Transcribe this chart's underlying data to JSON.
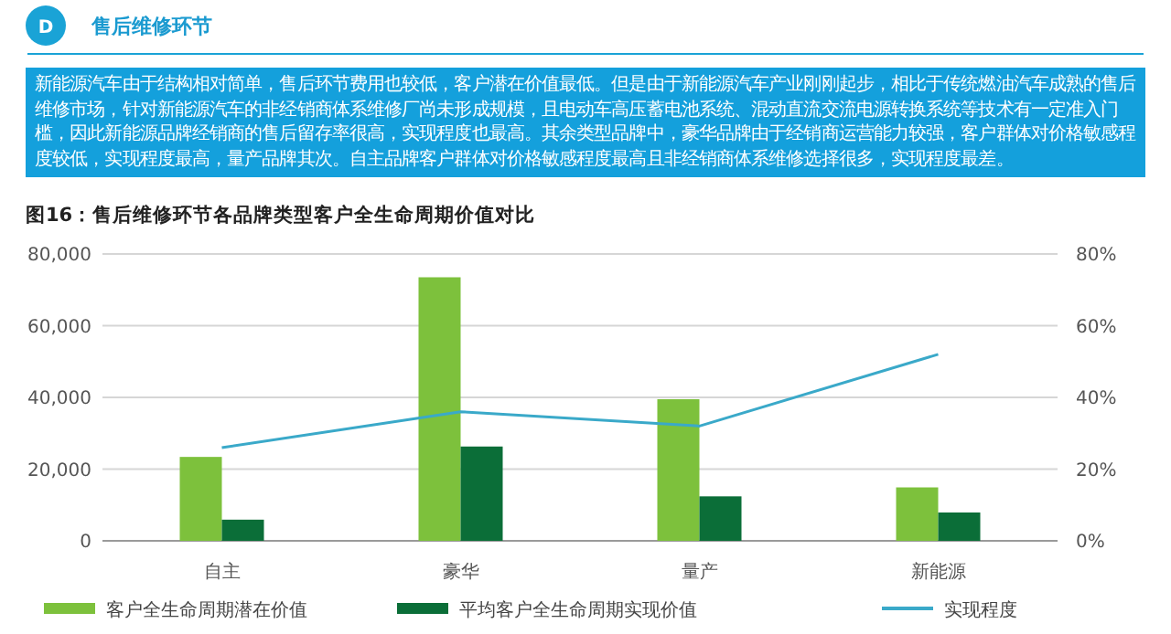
{
  "chart_data": {
    "type": "bar",
    "title": "图16：售后维修环节各品牌类型客户全生命周期价值对比",
    "annotations": [
      "D",
      "售后维修环节",
      "新能源汽车由于结构相对简单，售后环节费用也较低，客户潜在价值最低。但是由于新能源汽车产业刚刚起步，相比于传统燃油汽车成熟的售后维修市场，针对新能源汽车的非经销商体系维修厂尚未形成规模，且电动车高压蓄电池系统、混动直流交流电源转换系统等技术有一定准入门槛，因此新能源品牌经销商的售后留存率很高，实现程度也最高。其余类型品牌中，豪华品牌由于经销商运营能力较强，客户群体对价格敏感程度较低，实现程度最高，量产品牌其次。自主品牌客户群体对价格敏感程度最高且非经销商体系维修选择很多，实现程度最差。"
    ],
    "categories": [
      "自主",
      "豪华",
      "量产",
      "新能源"
    ],
    "series": [
      {
        "name": "客户全生命周期潜在价值",
        "color": "#7dc13c",
        "values": [
          23400,
          73500,
          39500,
          14900
        ]
      },
      {
        "name": "平均客户全生命周期实现价值",
        "color": "#0b6e38",
        "values": [
          5900,
          26300,
          12400,
          7900
        ]
      },
      {
        "name": "实现程度",
        "type": "line",
        "axis": "y2",
        "color": "#3aa9c9",
        "values": [
          26,
          36,
          32,
          52
        ]
      }
    ],
    "ylim": [
      0,
      80000
    ],
    "yticks": [
      0,
      {
        "value": 20000,
        "label": "20,000"
      },
      {
        "value": 40000,
        "label": "40,000"
      },
      {
        "value": 60000,
        "label": "60,000"
      },
      {
        "value": 80000,
        "label": "80,000"
      }
    ],
    "y2lim": [
      0,
      80
    ],
    "y2ticks": [
      {
        "value": 0,
        "label": "0%"
      },
      {
        "value": 20,
        "label": "20%"
      },
      {
        "value": 40,
        "label": "40%"
      },
      {
        "value": 60,
        "label": "60%"
      },
      {
        "value": 80,
        "label": "80%"
      }
    ],
    "grid": "y",
    "legend": "bottom"
  }
}
